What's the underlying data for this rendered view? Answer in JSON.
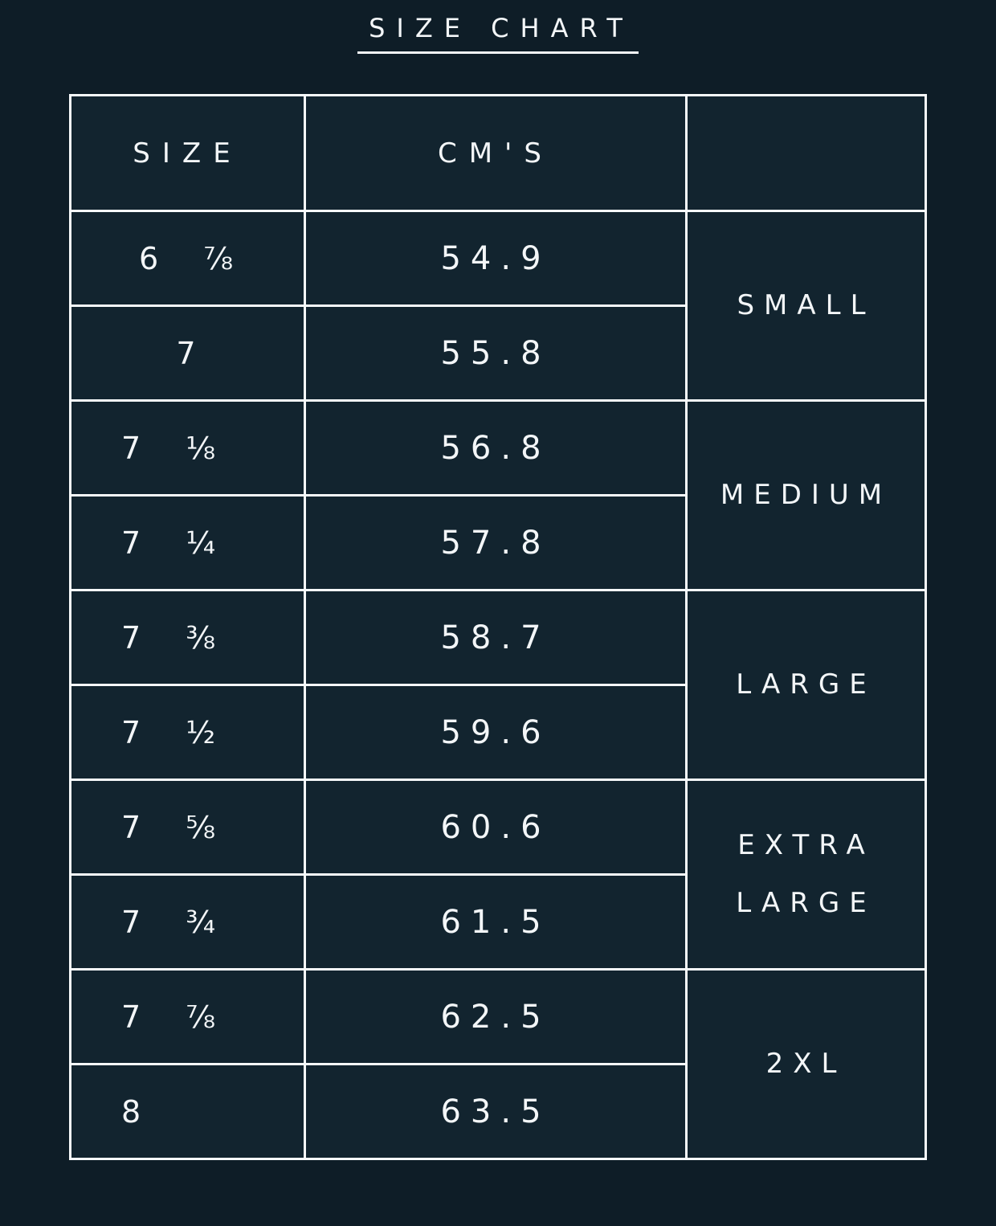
{
  "page": {
    "title": "SIZE CHART"
  },
  "colors": {
    "background": "#0e1d27",
    "cell_background": "#12242f",
    "grid_line": "#f7fafb",
    "text": "#f3f6f8"
  },
  "table": {
    "headers": {
      "size": "SIZE",
      "cms": "CM'S",
      "group": ""
    },
    "groups": [
      {
        "label": "SMALL",
        "rows": [
          {
            "size": "6 ⅞",
            "cm": "54.9"
          },
          {
            "size": "7",
            "cm": "55.8"
          }
        ]
      },
      {
        "label": "MEDIUM",
        "rows": [
          {
            "size": "7 ⅛",
            "cm": "56.8"
          },
          {
            "size": "7 ¼",
            "cm": "57.8"
          }
        ]
      },
      {
        "label": "LARGE",
        "rows": [
          {
            "size": "7 ⅜",
            "cm": "58.7"
          },
          {
            "size": "7 ½",
            "cm": "59.6"
          }
        ]
      },
      {
        "label": "EXTRA LARGE",
        "rows": [
          {
            "size": "7 ⅝",
            "cm": "60.6"
          },
          {
            "size": "7 ¾",
            "cm": "61.5"
          }
        ]
      },
      {
        "label": "2XL",
        "rows": [
          {
            "size": "7 ⅞",
            "cm": "62.5"
          },
          {
            "size": "8",
            "cm": "63.5"
          }
        ]
      }
    ]
  },
  "chart_data": {
    "type": "table",
    "title": "SIZE CHART",
    "columns": [
      "SIZE",
      "CM'S",
      ""
    ],
    "rows": [
      [
        "6 ⅞",
        54.9,
        "SMALL"
      ],
      [
        "7",
        55.8,
        "SMALL"
      ],
      [
        "7 ⅛",
        56.8,
        "MEDIUM"
      ],
      [
        "7 ¼",
        57.8,
        "MEDIUM"
      ],
      [
        "7 ⅜",
        58.7,
        "LARGE"
      ],
      [
        "7 ½",
        59.6,
        "LARGE"
      ],
      [
        "7 ⅝",
        60.6,
        "EXTRA LARGE"
      ],
      [
        "7 ¾",
        61.5,
        "EXTRA LARGE"
      ],
      [
        "7 ⅞",
        62.5,
        "2XL"
      ],
      [
        "8",
        63.5,
        "2XL"
      ]
    ]
  }
}
